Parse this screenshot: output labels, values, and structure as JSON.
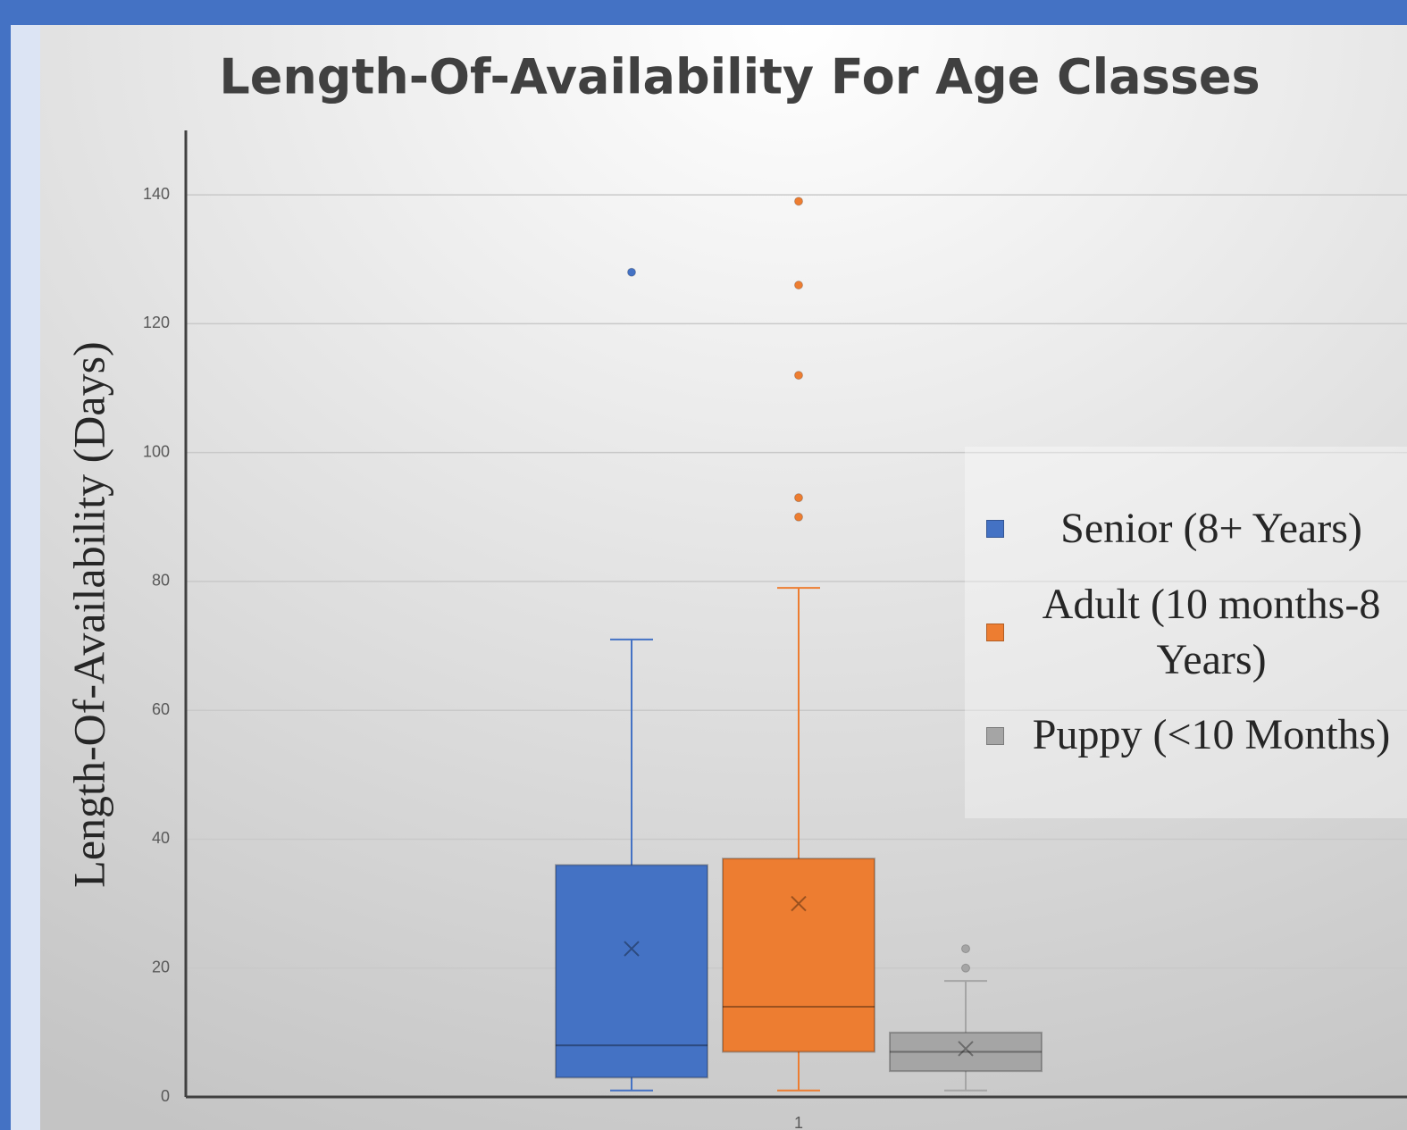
{
  "chart_data": {
    "type": "box",
    "title": "Length-Of-Availability For Age Classes",
    "y_label": "Length-Of-Availability (Days)",
    "categories": [
      "1"
    ],
    "ylim": [
      0,
      150
    ],
    "yticks": [
      0,
      20,
      40,
      60,
      80,
      100,
      120,
      140
    ],
    "grid": true,
    "legend": "right",
    "series": [
      {
        "name": "Senior (8+ Years)",
        "color": "#4472c4",
        "min": 1,
        "q1": 3,
        "median": 8,
        "q3": 36,
        "max": 71,
        "mean": 23,
        "outliers": [
          128
        ]
      },
      {
        "name": "Adult (10 months-8 Years)",
        "color": "#ed7d31",
        "min": 1,
        "q1": 7,
        "median": 14,
        "q3": 37,
        "max": 79,
        "mean": 30,
        "outliers": [
          139,
          126,
          112,
          93,
          90
        ]
      },
      {
        "name": "Puppy (<10 Months)",
        "color": "#a5a5a5",
        "min": 1,
        "q1": 4,
        "median": 7,
        "q3": 10,
        "max": 18,
        "mean": 7.5,
        "outliers": [
          23,
          20
        ]
      }
    ]
  }
}
